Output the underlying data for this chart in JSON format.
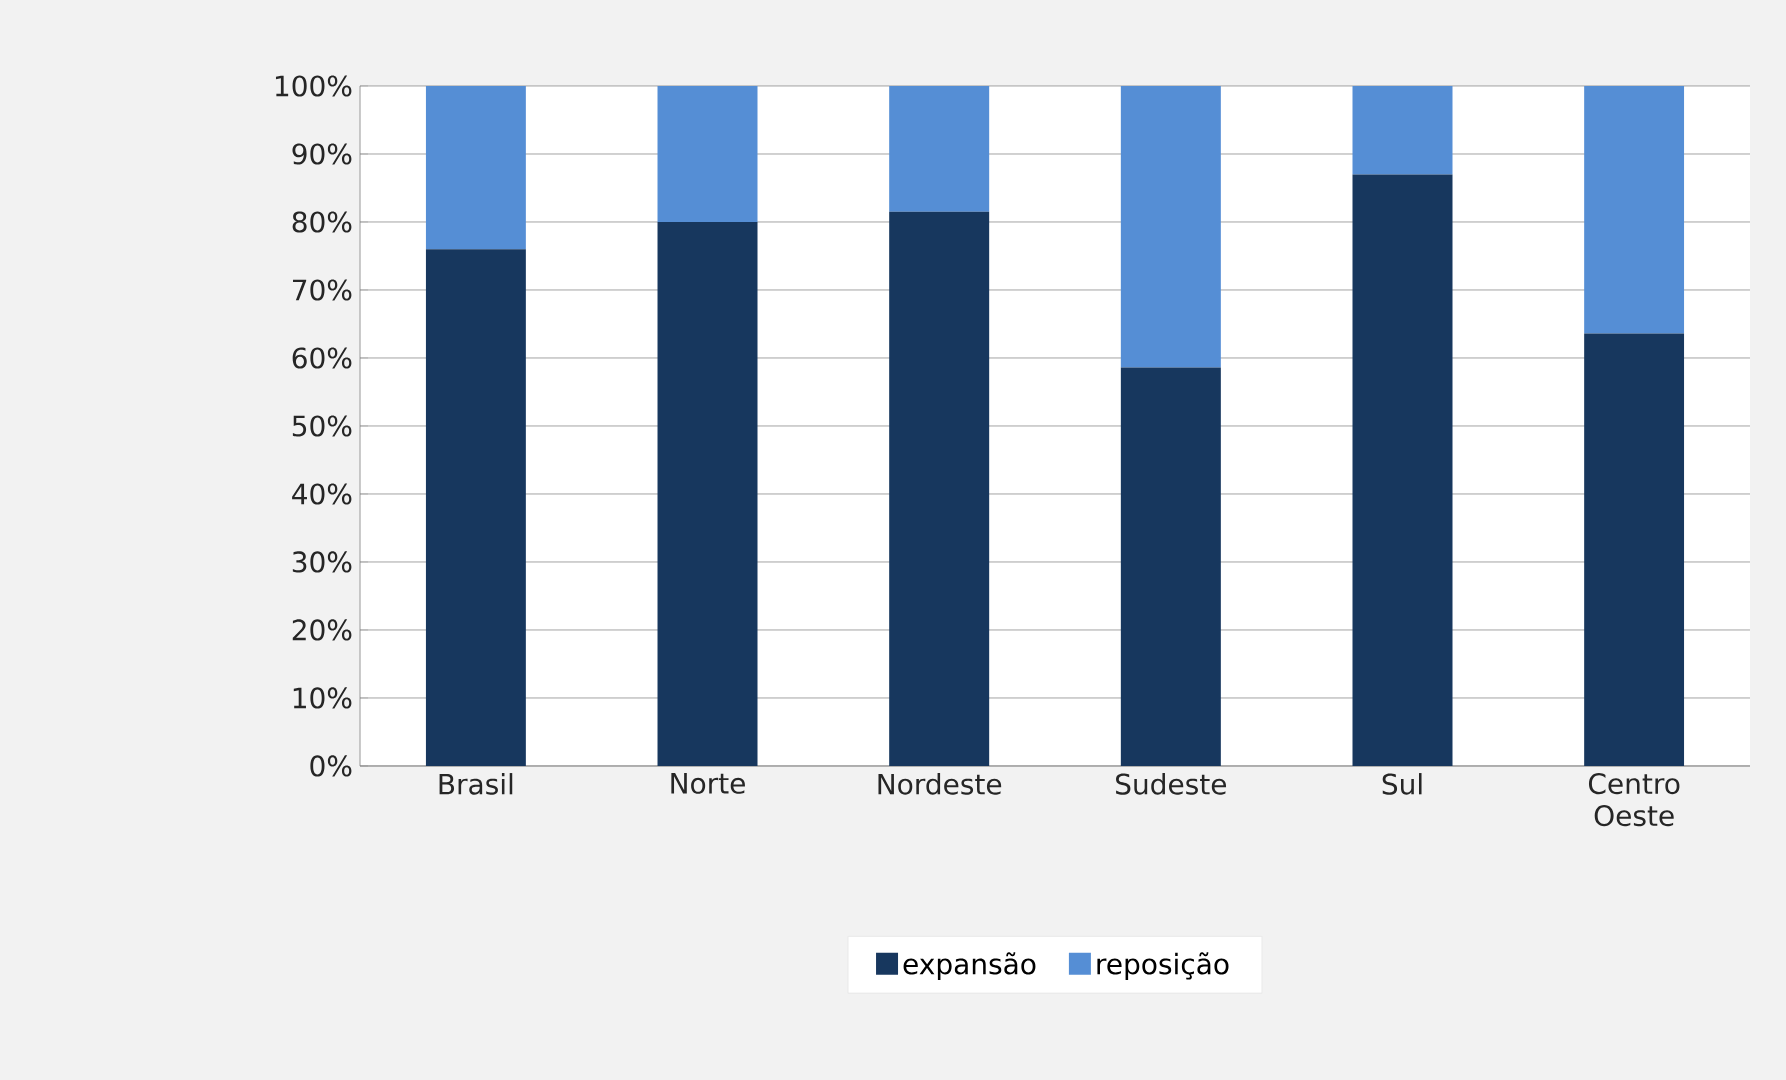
{
  "chart_data": {
    "type": "bar",
    "stacked": true,
    "categories": [
      "Brasil",
      "Norte",
      "Nordeste",
      "Sudeste",
      "Sul",
      "Centro Oeste"
    ],
    "series": [
      {
        "name": "expansão",
        "color": "#17375e",
        "values": [
          76,
          80,
          81.5,
          58.6,
          87,
          63.6
        ]
      },
      {
        "name": "reposição",
        "color": "#558ed5",
        "values": [
          24,
          20,
          18.5,
          41.4,
          13,
          36.4
        ]
      }
    ],
    "ylim": [
      0,
      100
    ],
    "yticks": [
      {
        "value": 0,
        "label": "0%"
      },
      {
        "value": 10,
        "label": "10%"
      },
      {
        "value": 20,
        "label": "20%"
      },
      {
        "value": 30,
        "label": "30%"
      },
      {
        "value": 40,
        "label": "40%"
      },
      {
        "value": 50,
        "label": "50%"
      },
      {
        "value": 60,
        "label": "60%"
      },
      {
        "value": 70,
        "label": "70%"
      },
      {
        "value": 80,
        "label": "80%"
      },
      {
        "value": 90,
        "label": "90%"
      },
      {
        "value": 100,
        "label": "100%"
      }
    ],
    "grid": "y",
    "legend": "bottom"
  }
}
